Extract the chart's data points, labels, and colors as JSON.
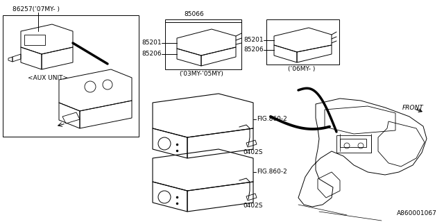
{
  "bg_color": "#FFFFFF",
  "line_color": "#000000",
  "part_number": "A860001067",
  "labels": {
    "aux_part": "86257(’07MY- )",
    "aux_unit": "<AUX UNIT>",
    "p85066": "85066",
    "p85201_l": "85201",
    "p85206_l": "85206",
    "year_l": "(’03MY-’05MY)",
    "p85201_r": "85201",
    "p85206_r": "85206",
    "year_r": "(’06MY- )",
    "fig860_1": "FIG.860-2",
    "fig860_2": "FIG.860-2",
    "q0402s_1": "0402S",
    "q0402s_2": "0402S",
    "front": "FRONT"
  },
  "fs": 6.5
}
